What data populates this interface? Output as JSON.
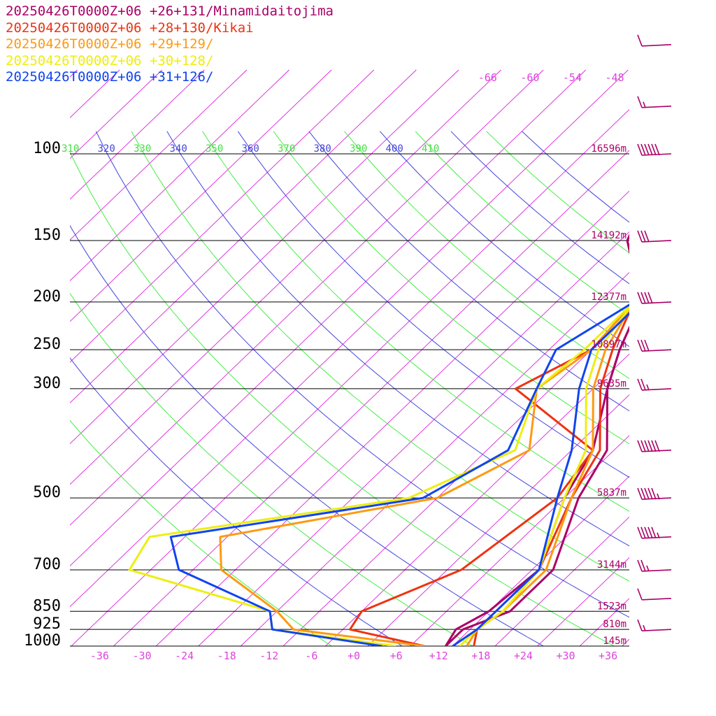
{
  "chart_data": {
    "type": "line",
    "title": "",
    "xlabel": "",
    "ylabel": "",
    "x_tick_labels": [
      "-36",
      "-30",
      "-24",
      "-18",
      "-12",
      "-6",
      "+0",
      "+6",
      "+12",
      "+18",
      "+24",
      "+30",
      "+36"
    ],
    "x_ticks": [
      -36,
      -30,
      -24,
      -18,
      -12,
      -6,
      0,
      6,
      12,
      18,
      24,
      30,
      36
    ],
    "pressure_levels": [
      {
        "p": 100,
        "label": "100",
        "height": "16596m"
      },
      {
        "p": 150,
        "label": "150",
        "height": "14192m"
      },
      {
        "p": 200,
        "label": "200",
        "height": "12377m"
      },
      {
        "p": 250,
        "label": "250",
        "height": "10897m"
      },
      {
        "p": 300,
        "label": "300",
        "height": "9635m"
      },
      {
        "p": 500,
        "label": "500",
        "height": "5837m"
      },
      {
        "p": 700,
        "label": "700",
        "height": "3144m"
      },
      {
        "p": 850,
        "label": "850",
        "height": "1523m"
      },
      {
        "p": 925,
        "label": "925",
        "height": "810m"
      },
      {
        "p": 1000,
        "label": "1000",
        "height": "145m"
      }
    ],
    "isotherm_labels": [
      {
        "t": -66,
        "label": "-66"
      },
      {
        "t": -60,
        "label": "-60"
      },
      {
        "t": -54,
        "label": "-54"
      },
      {
        "t": -48,
        "label": "-48"
      }
    ],
    "theta_labels": [
      {
        "th": 310,
        "label": "310",
        "color": "#44dd44"
      },
      {
        "th": 320,
        "label": "320",
        "color": "#4444dd"
      },
      {
        "th": 330,
        "label": "330",
        "color": "#44dd44"
      },
      {
        "th": 340,
        "label": "340",
        "color": "#4444dd"
      },
      {
        "th": 350,
        "label": "350",
        "color": "#44dd44"
      },
      {
        "th": 360,
        "label": "360",
        "color": "#4444dd"
      },
      {
        "th": 370,
        "label": "370",
        "color": "#44dd44"
      },
      {
        "th": 380,
        "label": "380",
        "color": "#4444dd"
      },
      {
        "th": 390,
        "label": "390",
        "color": "#44dd44"
      },
      {
        "th": 400,
        "label": "400",
        "color": "#4444dd"
      },
      {
        "th": 410,
        "label": "410",
        "color": "#44dd44"
      }
    ],
    "colors": {
      "isotherm": "#dd22dd",
      "theta_green": "#44ee44",
      "theta_blue": "#4444dd",
      "isobar": "#000000",
      "barb": "#aa0066",
      "height_label": "#aa0066",
      "axis_label": "#dd44dd"
    },
    "series": [
      {
        "name": "20250426T0000Z+06 +26+131/Minamidaitojima",
        "color": "#aa0066",
        "temperature": [
          [
            1000,
            13
          ],
          [
            925,
            13
          ],
          [
            850,
            17
          ],
          [
            700,
            17
          ],
          [
            500,
            10
          ],
          [
            400,
            7
          ],
          [
            300,
            -2
          ],
          [
            250,
            -6
          ],
          [
            200,
            -10
          ],
          [
            150,
            -21
          ],
          [
            100,
            -28
          ],
          [
            80,
            -23
          ],
          [
            60,
            0
          ],
          [
            40,
            13
          ]
        ],
        "dewpoint": [
          [
            1000,
            13
          ],
          [
            925,
            12
          ],
          [
            850,
            14
          ],
          [
            700,
            15
          ],
          [
            500,
            8
          ],
          [
            400,
            5
          ],
          [
            300,
            -2
          ],
          [
            250,
            -6
          ],
          [
            200,
            -10
          ],
          [
            150,
            -21
          ],
          [
            100,
            -28
          ]
        ]
      },
      {
        "name": "20250426T0000Z+06 +28+130/Kikai",
        "color": "#ee3311",
        "temperature": [
          [
            1000,
            17
          ],
          [
            925,
            15
          ],
          [
            850,
            16
          ],
          [
            700,
            15
          ],
          [
            500,
            9
          ],
          [
            400,
            6
          ],
          [
            300,
            -3
          ],
          [
            250,
            -7
          ],
          [
            200,
            -11
          ],
          [
            150,
            -20
          ],
          [
            120,
            -27
          ],
          [
            80,
            -23
          ],
          [
            60,
            0
          ],
          [
            40,
            13
          ]
        ],
        "dewpoint": [
          [
            1000,
            10
          ],
          [
            925,
            -3
          ],
          [
            850,
            -4
          ],
          [
            700,
            4
          ],
          [
            500,
            7
          ],
          [
            400,
            5
          ],
          [
            300,
            -15
          ],
          [
            250,
            -10
          ],
          [
            200,
            -11
          ]
        ]
      },
      {
        "name": "20250426T0000Z+06 +29+129/",
        "color": "#ff9911",
        "temperature": [
          [
            1000,
            16
          ],
          [
            925,
            15
          ],
          [
            850,
            16
          ],
          [
            700,
            16
          ],
          [
            500,
            9
          ],
          [
            400,
            5
          ],
          [
            300,
            -4
          ],
          [
            250,
            -8
          ],
          [
            200,
            -11
          ],
          [
            150,
            -19
          ],
          [
            120,
            -24
          ],
          [
            80,
            -23
          ],
          [
            60,
            1
          ],
          [
            40,
            13
          ]
        ],
        "dewpoint": [
          [
            1000,
            10
          ],
          [
            925,
            -11
          ],
          [
            850,
            -16
          ],
          [
            700,
            -30
          ],
          [
            600,
            -35
          ],
          [
            500,
            -10
          ],
          [
            400,
            -4
          ],
          [
            300,
            -12
          ],
          [
            250,
            -10
          ],
          [
            200,
            -11
          ]
        ]
      },
      {
        "name": "20250426T0000Z+06 +30+128/",
        "color": "#eeee11",
        "temperature": [
          [
            1000,
            15
          ],
          [
            925,
            15
          ],
          [
            850,
            16
          ],
          [
            700,
            15
          ],
          [
            500,
            8
          ],
          [
            400,
            4
          ],
          [
            300,
            -5
          ],
          [
            250,
            -9
          ],
          [
            200,
            -11
          ],
          [
            150,
            -18
          ],
          [
            100,
            -25
          ],
          [
            80,
            -20
          ],
          [
            60,
            2
          ],
          [
            40,
            14
          ]
        ],
        "dewpoint": [
          [
            1000,
            6
          ],
          [
            925,
            -14
          ],
          [
            850,
            -17
          ],
          [
            700,
            -43
          ],
          [
            600,
            -45
          ],
          [
            500,
            -14
          ],
          [
            400,
            -6
          ],
          [
            300,
            -12
          ],
          [
            250,
            -11
          ],
          [
            200,
            -11
          ]
        ]
      },
      {
        "name": "20250426T0000Z+06 +31+126/",
        "color": "#1144ee",
        "temperature": [
          [
            1000,
            14
          ],
          [
            925,
            15
          ],
          [
            850,
            15
          ],
          [
            700,
            15
          ],
          [
            500,
            7
          ],
          [
            400,
            2
          ],
          [
            300,
            -6
          ],
          [
            250,
            -10
          ],
          [
            200,
            -10
          ],
          [
            150,
            -13
          ],
          [
            100,
            -20
          ],
          [
            80,
            -15
          ],
          [
            60,
            4
          ],
          [
            40,
            15
          ]
        ],
        "dewpoint": [
          [
            1000,
            4
          ],
          [
            925,
            -14
          ],
          [
            850,
            -17
          ],
          [
            700,
            -36
          ],
          [
            600,
            -42
          ],
          [
            500,
            -12
          ],
          [
            400,
            -7
          ],
          [
            300,
            -12
          ],
          [
            250,
            -15
          ],
          [
            200,
            -11
          ]
        ]
      }
    ],
    "wind_barbs": [
      {
        "p": 60,
        "speed_kt": 10
      },
      {
        "p": 80,
        "speed_kt": 15
      },
      {
        "p": 100,
        "speed_kt": 60
      },
      {
        "p": 150,
        "speed_kt": 30
      },
      {
        "p": 200,
        "speed_kt": 40
      },
      {
        "p": 250,
        "speed_kt": 30
      },
      {
        "p": 300,
        "speed_kt": 25
      },
      {
        "p": 400,
        "speed_kt": 60
      },
      {
        "p": 500,
        "speed_kt": 55
      },
      {
        "p": 600,
        "speed_kt": 55
      },
      {
        "p": 700,
        "speed_kt": 25
      },
      {
        "p": 800,
        "speed_kt": 10
      },
      {
        "p": 925,
        "speed_kt": 15
      }
    ]
  }
}
